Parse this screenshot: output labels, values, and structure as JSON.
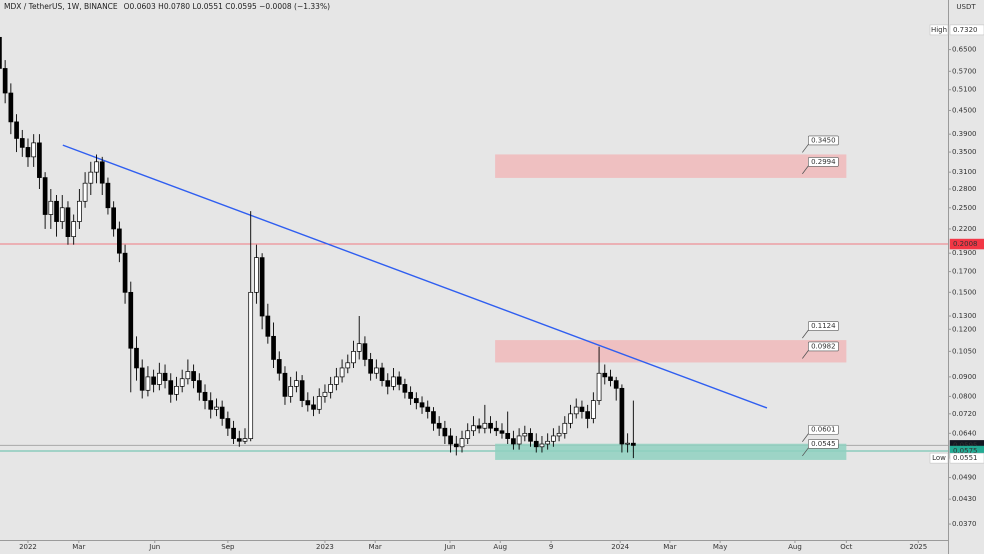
{
  "chart_data": {
    "type": "candlestick",
    "title": "MDX / TetherUS, 1W, BINANCE",
    "ohlc_text": "O0.0603 H0.0780 L0.0551 C0.0595 −0.0008 (−1.33%)",
    "currency": "USDT",
    "log_scale": true,
    "up_color": "#ffffff",
    "down_color": "#000000",
    "wick_color": "#000000",
    "xlim": [
      -4.9,
      161.1
    ],
    "ylim": [
      0.0336,
      0.877
    ],
    "xticks": [
      {
        "value": 0,
        "label": "2022"
      },
      {
        "value": 8.9,
        "label": "Mar"
      },
      {
        "value": 22.2,
        "label": "Jun"
      },
      {
        "value": 35,
        "label": "Sep"
      },
      {
        "value": 52,
        "label": "2023"
      },
      {
        "value": 60.8,
        "label": "Mar"
      },
      {
        "value": 73.9,
        "label": "Jun"
      },
      {
        "value": 82.7,
        "label": "Aug"
      },
      {
        "value": 91.6,
        "label": "9"
      },
      {
        "value": 103.7,
        "label": "2024"
      },
      {
        "value": 112.4,
        "label": "Mar"
      },
      {
        "value": 121.2,
        "label": "May"
      },
      {
        "value": 134.3,
        "label": "Aug"
      },
      {
        "value": 143.3,
        "label": "Oct"
      },
      {
        "value": 155.9,
        "label": "2025"
      }
    ],
    "yticks": [
      {
        "value": 0.65,
        "label": "0.6500"
      },
      {
        "value": 0.57,
        "label": "0.5700"
      },
      {
        "value": 0.51,
        "label": "0.5100"
      },
      {
        "value": 0.45,
        "label": "0.4500"
      },
      {
        "value": 0.39,
        "label": "0.3900"
      },
      {
        "value": 0.35,
        "label": "0.3500"
      },
      {
        "value": 0.31,
        "label": "0.3100"
      },
      {
        "value": 0.28,
        "label": "0.2800"
      },
      {
        "value": 0.25,
        "label": "0.2500"
      },
      {
        "value": 0.22,
        "label": "0.2200"
      },
      {
        "value": 0.19,
        "label": "0.1900"
      },
      {
        "value": 0.17,
        "label": "0.1700"
      },
      {
        "value": 0.15,
        "label": "0.1500"
      },
      {
        "value": 0.13,
        "label": "0.1300"
      },
      {
        "value": 0.12,
        "label": "0.1200"
      },
      {
        "value": 0.105,
        "label": "0.1050"
      },
      {
        "value": 0.09,
        "label": "0.0900"
      },
      {
        "value": 0.08,
        "label": "0.0800"
      },
      {
        "value": 0.072,
        "label": "0.0720"
      },
      {
        "value": 0.064,
        "label": "0.0640"
      },
      {
        "value": 0.049,
        "label": "0.0490"
      },
      {
        "value": 0.043,
        "label": "0.0430"
      },
      {
        "value": 0.037,
        "label": "0.0370"
      }
    ],
    "x": [
      -5,
      -4,
      -3,
      -2,
      -1,
      0,
      1,
      2,
      3,
      4,
      5,
      6,
      7,
      8,
      9,
      10,
      11,
      12,
      13,
      14,
      15,
      16,
      17,
      18,
      19,
      20,
      21,
      22,
      23,
      24,
      25,
      26,
      27,
      28,
      29,
      30,
      31,
      32,
      33,
      34,
      35,
      36,
      37,
      38,
      39,
      40,
      41,
      42,
      43,
      44,
      45,
      46,
      47,
      48,
      49,
      50,
      51,
      52,
      53,
      54,
      55,
      56,
      57,
      58,
      59,
      60,
      61,
      62,
      63,
      64,
      65,
      66,
      67,
      68,
      69,
      70,
      71,
      72,
      73,
      74,
      75,
      76,
      77,
      78,
      79,
      80,
      81,
      82,
      83,
      84,
      85,
      86,
      87,
      88,
      89,
      90,
      91,
      92,
      93,
      94,
      95,
      96,
      97,
      98,
      99,
      100,
      101,
      102,
      103,
      104,
      105,
      106
    ],
    "open": [
      0.7,
      0.58,
      0.5,
      0.42,
      0.38,
      0.36,
      0.34,
      0.37,
      0.3,
      0.24,
      0.26,
      0.23,
      0.25,
      0.21,
      0.23,
      0.26,
      0.29,
      0.31,
      0.33,
      0.29,
      0.25,
      0.22,
      0.19,
      0.15,
      0.107,
      0.095,
      0.083,
      0.09,
      0.086,
      0.092,
      0.088,
      0.081,
      0.085,
      0.089,
      0.093,
      0.088,
      0.082,
      0.078,
      0.074,
      0.075,
      0.07,
      0.066,
      0.062,
      0.061,
      0.062,
      0.15,
      0.185,
      0.13,
      0.115,
      0.1,
      0.092,
      0.08,
      0.085,
      0.088,
      0.078,
      0.076,
      0.074,
      0.08,
      0.082,
      0.086,
      0.09,
      0.095,
      0.098,
      0.105,
      0.11,
      0.1,
      0.092,
      0.095,
      0.088,
      0.085,
      0.09,
      0.086,
      0.082,
      0.079,
      0.077,
      0.075,
      0.073,
      0.068,
      0.066,
      0.063,
      0.06,
      0.059,
      0.062,
      0.065,
      0.067,
      0.066,
      0.068,
      0.066,
      0.065,
      0.064,
      0.062,
      0.06,
      0.063,
      0.064,
      0.061,
      0.059,
      0.06,
      0.061,
      0.063,
      0.064,
      0.068,
      0.072,
      0.075,
      0.073,
      0.07,
      0.078,
      0.092,
      0.09,
      0.088,
      0.084,
      0.06,
      0.0603
    ],
    "high": [
      0.732,
      0.61,
      0.53,
      0.44,
      0.4,
      0.38,
      0.39,
      0.39,
      0.31,
      0.28,
      0.27,
      0.27,
      0.26,
      0.24,
      0.28,
      0.31,
      0.33,
      0.345,
      0.34,
      0.3,
      0.26,
      0.23,
      0.2,
      0.16,
      0.115,
      0.1,
      0.096,
      0.094,
      0.098,
      0.097,
      0.092,
      0.09,
      0.094,
      0.1,
      0.097,
      0.092,
      0.086,
      0.082,
      0.079,
      0.078,
      0.073,
      0.069,
      0.065,
      0.066,
      0.245,
      0.2,
      0.19,
      0.14,
      0.125,
      0.105,
      0.096,
      0.09,
      0.093,
      0.091,
      0.082,
      0.08,
      0.084,
      0.086,
      0.09,
      0.095,
      0.1,
      0.103,
      0.112,
      0.13,
      0.115,
      0.104,
      0.1,
      0.098,
      0.092,
      0.095,
      0.093,
      0.089,
      0.085,
      0.082,
      0.08,
      0.078,
      0.075,
      0.071,
      0.069,
      0.066,
      0.063,
      0.065,
      0.068,
      0.071,
      0.07,
      0.076,
      0.071,
      0.069,
      0.068,
      0.073,
      0.065,
      0.066,
      0.067,
      0.066,
      0.064,
      0.063,
      0.064,
      0.066,
      0.067,
      0.071,
      0.076,
      0.079,
      0.078,
      0.076,
      0.082,
      0.108,
      0.097,
      0.094,
      0.09,
      0.086,
      0.064,
      0.078
    ],
    "low": [
      0.55,
      0.47,
      0.39,
      0.35,
      0.34,
      0.32,
      0.32,
      0.28,
      0.22,
      0.22,
      0.21,
      0.22,
      0.2,
      0.2,
      0.22,
      0.25,
      0.27,
      0.29,
      0.27,
      0.24,
      0.21,
      0.18,
      0.14,
      0.082,
      0.088,
      0.079,
      0.08,
      0.082,
      0.083,
      0.084,
      0.077,
      0.078,
      0.082,
      0.086,
      0.084,
      0.078,
      0.074,
      0.07,
      0.071,
      0.067,
      0.063,
      0.06,
      0.059,
      0.06,
      0.061,
      0.14,
      0.12,
      0.11,
      0.095,
      0.088,
      0.076,
      0.077,
      0.082,
      0.075,
      0.073,
      0.071,
      0.072,
      0.077,
      0.079,
      0.083,
      0.087,
      0.092,
      0.095,
      0.1,
      0.096,
      0.088,
      0.089,
      0.085,
      0.081,
      0.083,
      0.083,
      0.079,
      0.076,
      0.074,
      0.072,
      0.07,
      0.065,
      0.063,
      0.06,
      0.057,
      0.056,
      0.057,
      0.06,
      0.063,
      0.064,
      0.064,
      0.064,
      0.063,
      0.062,
      0.06,
      0.058,
      0.058,
      0.061,
      0.059,
      0.057,
      0.057,
      0.058,
      0.059,
      0.061,
      0.062,
      0.066,
      0.07,
      0.07,
      0.066,
      0.068,
      0.076,
      0.086,
      0.085,
      0.078,
      0.057,
      0.057,
      0.0551
    ],
    "close": [
      0.58,
      0.5,
      0.42,
      0.38,
      0.36,
      0.34,
      0.37,
      0.3,
      0.24,
      0.26,
      0.23,
      0.25,
      0.21,
      0.23,
      0.26,
      0.29,
      0.31,
      0.33,
      0.29,
      0.25,
      0.22,
      0.19,
      0.15,
      0.107,
      0.095,
      0.083,
      0.09,
      0.086,
      0.092,
      0.088,
      0.081,
      0.085,
      0.089,
      0.093,
      0.088,
      0.082,
      0.078,
      0.074,
      0.075,
      0.07,
      0.066,
      0.062,
      0.061,
      0.062,
      0.15,
      0.185,
      0.13,
      0.115,
      0.1,
      0.092,
      0.08,
      0.085,
      0.088,
      0.078,
      0.076,
      0.074,
      0.08,
      0.082,
      0.086,
      0.09,
      0.095,
      0.098,
      0.105,
      0.11,
      0.1,
      0.092,
      0.095,
      0.088,
      0.085,
      0.09,
      0.086,
      0.082,
      0.079,
      0.077,
      0.075,
      0.073,
      0.068,
      0.066,
      0.063,
      0.06,
      0.059,
      0.062,
      0.065,
      0.067,
      0.066,
      0.068,
      0.066,
      0.065,
      0.064,
      0.062,
      0.06,
      0.063,
      0.064,
      0.061,
      0.059,
      0.06,
      0.061,
      0.063,
      0.064,
      0.068,
      0.072,
      0.075,
      0.073,
      0.07,
      0.078,
      0.092,
      0.09,
      0.088,
      0.084,
      0.06,
      0.0603,
      0.0595
    ],
    "zones": [
      {
        "top": {
          "value": 0.345,
          "label": "0.3450"
        },
        "bottom": {
          "value": 0.2994,
          "label": "0.2994"
        },
        "x0": 81.8,
        "x1": 143.3,
        "color": "#f0b8ba"
      },
      {
        "top": {
          "value": 0.1124,
          "label": "0.1124"
        },
        "bottom": {
          "value": 0.0982,
          "label": "0.0982"
        },
        "x0": 81.8,
        "x1": 143.3,
        "color": "#f0b8ba"
      },
      {
        "top": {
          "value": 0.0601,
          "label": "0.0601"
        },
        "bottom": {
          "value": 0.0545,
          "label": "0.0545"
        },
        "x0": 81.8,
        "x1": 143.3,
        "color": "#8fd0c0"
      }
    ],
    "trendline": {
      "x": [
        6.1,
        129.4
      ],
      "y": [
        0.365,
        0.0746
      ],
      "color": "#2f5ef0"
    },
    "badges": [
      {
        "name": "High",
        "value": 0.732,
        "label": "0.7320",
        "bg": "#ffffff",
        "fg": "#222222"
      },
      {
        "value": 0.2008,
        "label": "0.2008",
        "bg": "#f23645",
        "fg": "#ffffff",
        "line_color": "#f07a83"
      },
      {
        "value": 0.0595,
        "label": "0.0595",
        "sub": "10:05:36",
        "bg": "#131722",
        "fg": "#ffffff",
        "line_color": "#a8a8a8"
      },
      {
        "value": 0.0575,
        "label": "0.0575",
        "bg": "#22ab94",
        "fg": "#ffffff",
        "line_color": "#5fbfa8"
      },
      {
        "name": "Low",
        "value": 0.0551,
        "label": "0.0551",
        "bg": "#ffffff",
        "fg": "#222222"
      }
    ]
  }
}
